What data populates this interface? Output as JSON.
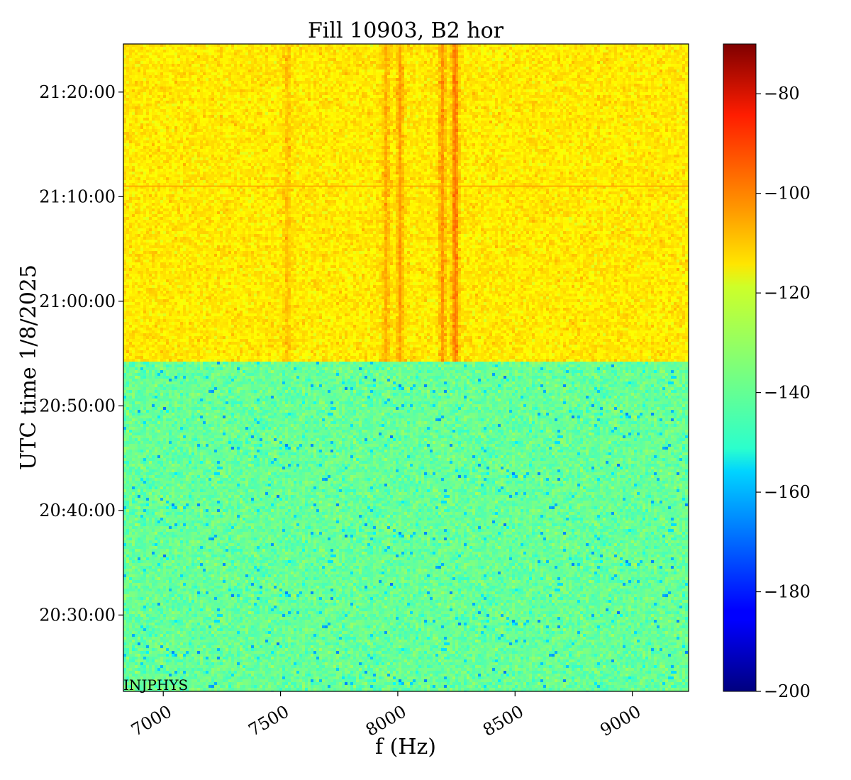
{
  "chart_data": {
    "type": "heatmap",
    "title": "Fill 10903, B2 hor",
    "xlabel": "f (Hz)",
    "ylabel": "UTC time 1/8/2025",
    "annotation": "INJPHYS",
    "xlim": [
      6830,
      9240
    ],
    "ylim_minutes_since_2025_08_01_00_00": [
      1222.7,
      1284.6
    ],
    "x_ticks": [
      {
        "value": 7000,
        "label": "7000"
      },
      {
        "value": 7500,
        "label": "7500"
      },
      {
        "value": 8000,
        "label": "8000"
      },
      {
        "value": 8500,
        "label": "8500"
      },
      {
        "value": 9000,
        "label": "9000"
      }
    ],
    "y_ticks": [
      {
        "value": 1230,
        "label": "20:30:00"
      },
      {
        "value": 1240,
        "label": "20:40:00"
      },
      {
        "value": 1250,
        "label": "20:50:00"
      },
      {
        "value": 1260,
        "label": "21:00:00"
      },
      {
        "value": 1270,
        "label": "21:10:00"
      },
      {
        "value": 1280,
        "label": "21:20:00"
      }
    ],
    "colorbar": {
      "colormap": "jet",
      "range": [
        -200,
        -70
      ],
      "ticks": [
        {
          "value": -80,
          "label": "−80"
        },
        {
          "value": -100,
          "label": "−100"
        },
        {
          "value": -120,
          "label": "−120"
        },
        {
          "value": -140,
          "label": "−140"
        },
        {
          "value": -160,
          "label": "−160"
        },
        {
          "value": -180,
          "label": "−180"
        },
        {
          "value": -200,
          "label": "−200"
        }
      ]
    },
    "regions": [
      {
        "t_start": 1222.7,
        "t_end": 1254.2,
        "level_dB": -138
      },
      {
        "t_start": 1254.2,
        "t_end": 1284.6,
        "level_dB": -116
      }
    ],
    "spectral_lines_upper_region": [
      {
        "f_hz": 7950,
        "level_dB": -107
      },
      {
        "f_hz": 8010,
        "level_dB": -105
      },
      {
        "f_hz": 8190,
        "level_dB": -104
      },
      {
        "f_hz": 8245,
        "level_dB": -99
      },
      {
        "f_hz": 7530,
        "level_dB": -110
      }
    ],
    "horizontal_line": {
      "t": 1271.0,
      "level_dB": -107
    }
  }
}
